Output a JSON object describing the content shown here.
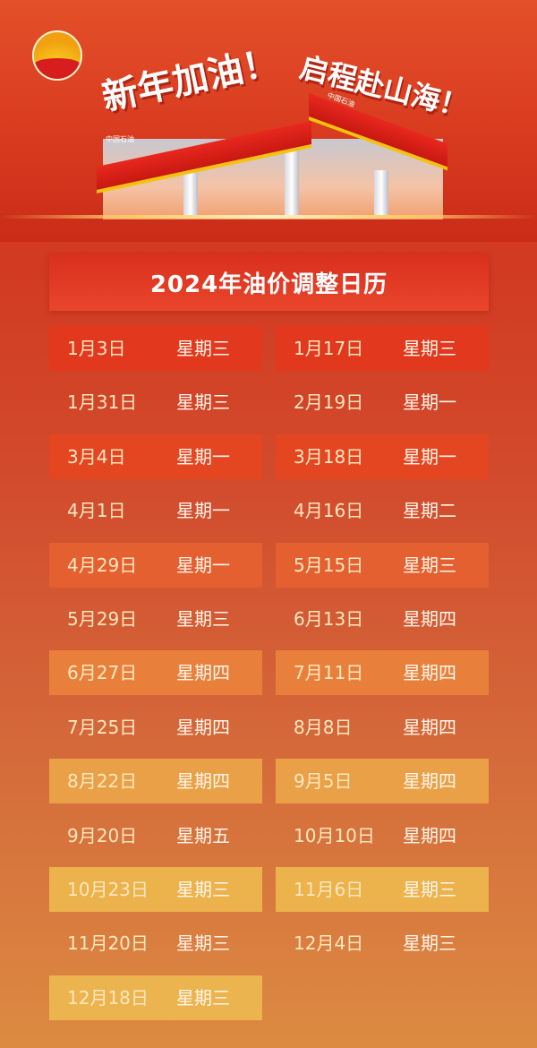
{
  "header": {
    "logo": "petrochina-logo",
    "slogan_left": "新年加油！",
    "slogan_right": "启程赴山海！",
    "canopy_brand": "中国石油",
    "title": "2024年油价调整日历"
  },
  "colors": {
    "accent_red": "#d9361f",
    "accent_orange": "#e08a40",
    "date_text": "#fde7bf"
  },
  "calendar": [
    {
      "date": "1月3日",
      "weekday": "星期三"
    },
    {
      "date": "1月17日",
      "weekday": "星期三"
    },
    {
      "date": "1月31日",
      "weekday": "星期三"
    },
    {
      "date": "2月19日",
      "weekday": "星期一"
    },
    {
      "date": "3月4日",
      "weekday": "星期一"
    },
    {
      "date": "3月18日",
      "weekday": "星期一"
    },
    {
      "date": "4月1日",
      "weekday": "星期一"
    },
    {
      "date": "4月16日",
      "weekday": "星期二"
    },
    {
      "date": "4月29日",
      "weekday": "星期一"
    },
    {
      "date": "5月15日",
      "weekday": "星期三"
    },
    {
      "date": "5月29日",
      "weekday": "星期三"
    },
    {
      "date": "6月13日",
      "weekday": "星期四"
    },
    {
      "date": "6月27日",
      "weekday": "星期四"
    },
    {
      "date": "7月11日",
      "weekday": "星期四"
    },
    {
      "date": "7月25日",
      "weekday": "星期四"
    },
    {
      "date": "8月8日",
      "weekday": "星期四"
    },
    {
      "date": "8月22日",
      "weekday": "星期四"
    },
    {
      "date": "9月5日",
      "weekday": "星期四"
    },
    {
      "date": "9月20日",
      "weekday": "星期五"
    },
    {
      "date": "10月10日",
      "weekday": "星期四"
    },
    {
      "date": "10月23日",
      "weekday": "星期三"
    },
    {
      "date": "11月6日",
      "weekday": "星期三"
    },
    {
      "date": "11月20日",
      "weekday": "星期三"
    },
    {
      "date": "12月4日",
      "weekday": "星期三"
    },
    {
      "date": "12月18日",
      "weekday": "星期三"
    }
  ]
}
